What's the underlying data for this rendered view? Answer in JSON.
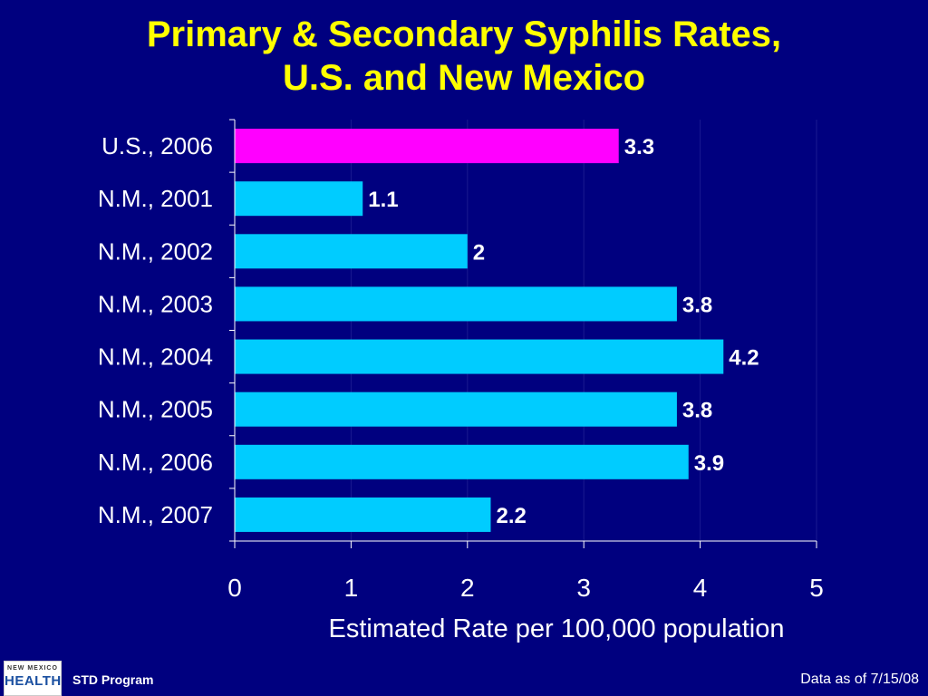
{
  "slide": {
    "title_line1": "Primary & Secondary Syphilis Rates,",
    "title_line2": "U.S. and New Mexico"
  },
  "footer": {
    "logo_small_text": "NEW MEXICO",
    "logo_main_text": "HEALTH",
    "program": "STD Program",
    "data_date": "Data as of 7/15/08"
  },
  "colors": {
    "background": "#00007f",
    "title": "#ffff00",
    "us_bar": "#ff00ff",
    "nm_bar": "#00ccff",
    "text": "#ffffff"
  },
  "chart_data": {
    "type": "bar",
    "orientation": "horizontal",
    "categories": [
      "U.S., 2006",
      "N.M., 2001",
      "N.M., 2002",
      "N.M., 2003",
      "N.M., 2004",
      "N.M., 2005",
      "N.M., 2006",
      "N.M., 2007"
    ],
    "values": [
      3.3,
      1.1,
      2,
      3.8,
      4.2,
      3.8,
      3.9,
      2.2
    ],
    "value_labels": [
      "3.3",
      "1.1",
      "2",
      "3.8",
      "4.2",
      "3.8",
      "3.9",
      "2.2"
    ],
    "bar_colors": [
      "#ff00ff",
      "#00ccff",
      "#00ccff",
      "#00ccff",
      "#00ccff",
      "#00ccff",
      "#00ccff",
      "#00ccff"
    ],
    "xlabel": "Estimated Rate per 100,000 population",
    "xlim": [
      0,
      5
    ],
    "xticks": [
      "0",
      "1",
      "2",
      "3",
      "4",
      "5"
    ],
    "grid": "vertical",
    "legend": "none"
  }
}
